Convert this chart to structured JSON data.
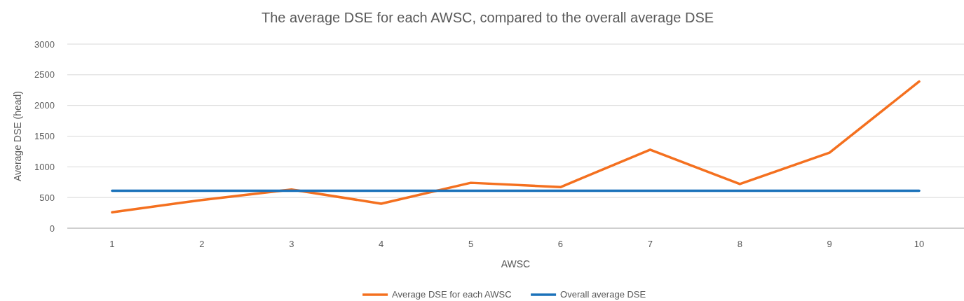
{
  "chart_data": {
    "type": "line",
    "title": "The average DSE for each AWSC, compared to the overall average DSE",
    "xlabel": "AWSC",
    "ylabel": "Average DSE (head)",
    "categories": [
      "1",
      "2",
      "3",
      "4",
      "5",
      "6",
      "7",
      "8",
      "9",
      "10"
    ],
    "series": [
      {
        "name": "Average DSE for each AWSC",
        "color": "#f4701f",
        "values": [
          260,
          460,
          630,
          400,
          740,
          670,
          1280,
          720,
          1230,
          2390
        ]
      },
      {
        "name": "Overall average DSE",
        "color": "#1b72ba",
        "values": [
          610,
          610,
          610,
          610,
          610,
          610,
          610,
          610,
          610,
          610
        ]
      }
    ],
    "ylim": [
      0,
      3000
    ],
    "yticks": [
      0,
      500,
      1000,
      1500,
      2000,
      2500,
      3000
    ],
    "grid": "y",
    "legend": "bottom",
    "marker": "none",
    "line_style": "solid"
  }
}
